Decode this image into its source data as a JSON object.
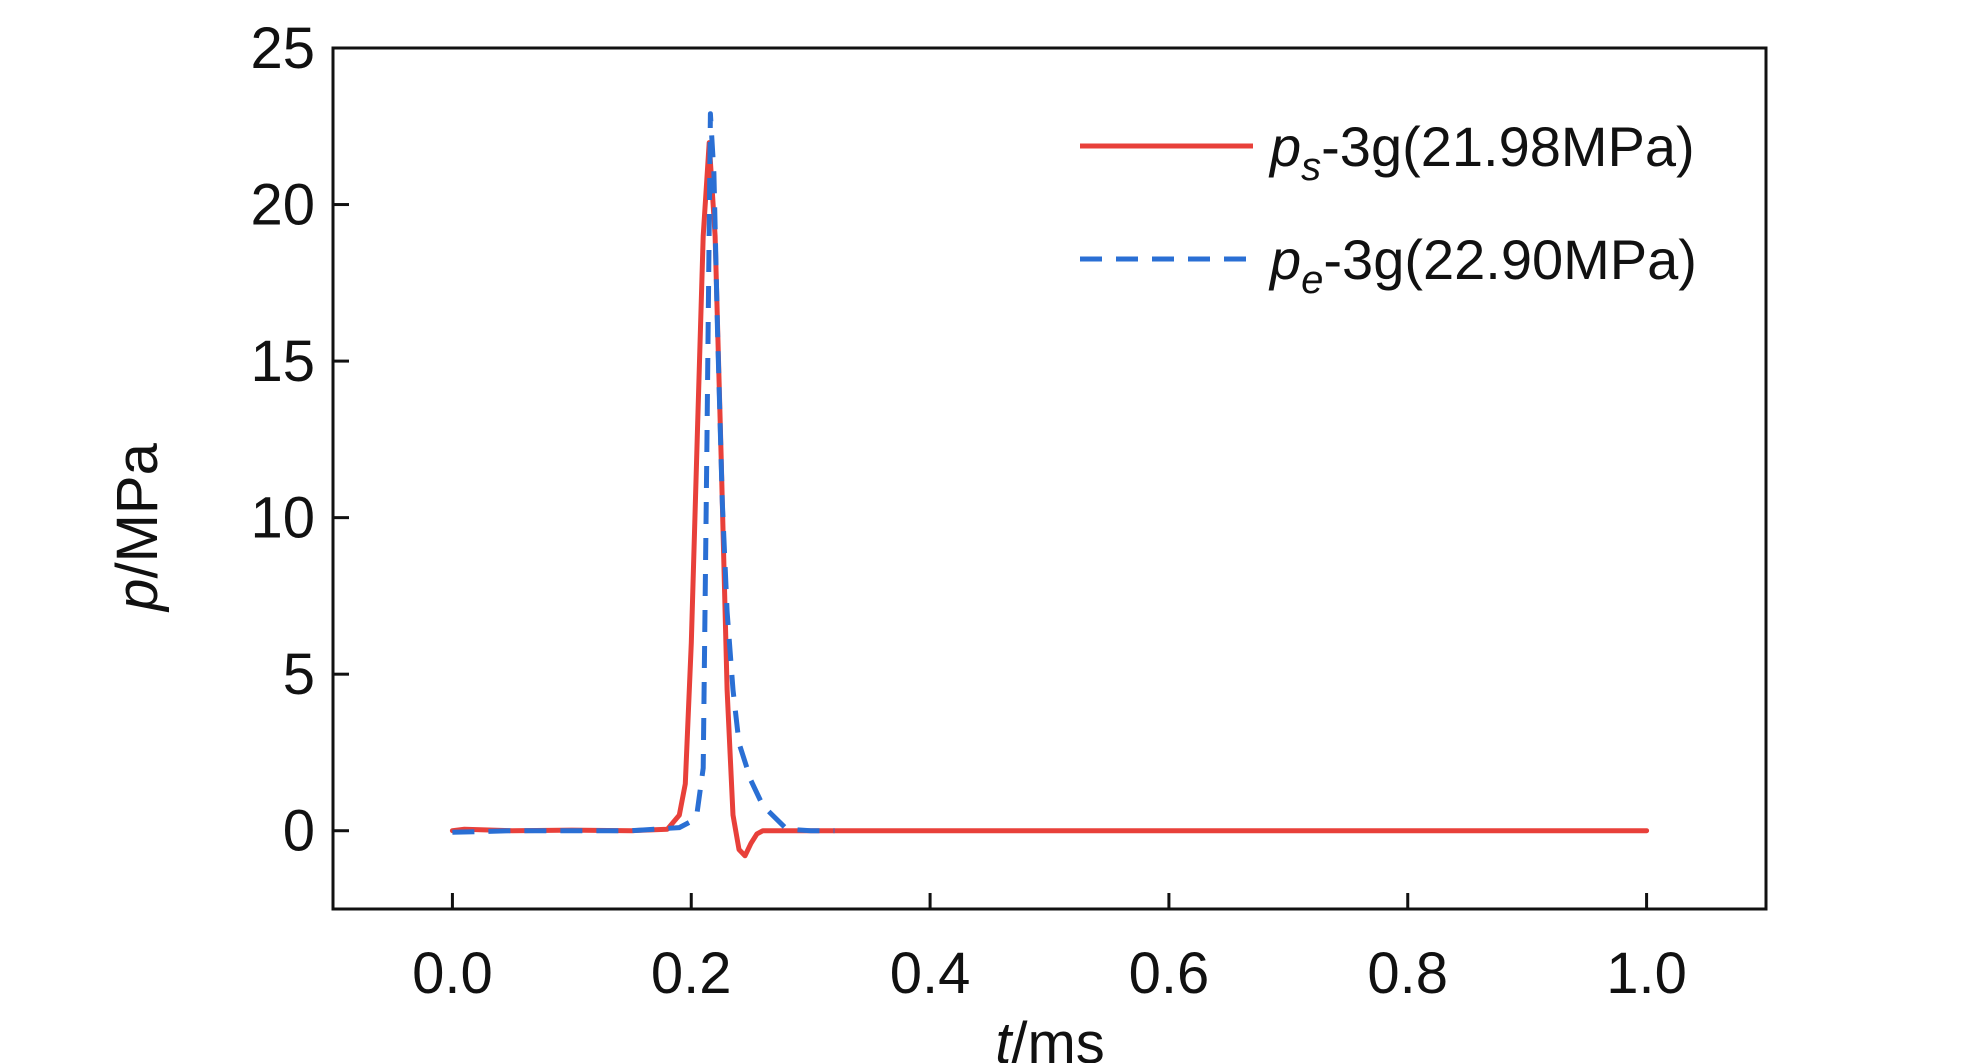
{
  "chart_data": {
    "type": "line",
    "xlabel": {
      "var": "t",
      "unit": "/ms"
    },
    "ylabel": {
      "var": "p",
      "unit": "/MPa"
    },
    "xlim": [
      -0.1,
      1.1
    ],
    "ylim": [
      -2.5,
      25
    ],
    "x_ticks": [
      0.0,
      0.2,
      0.4,
      0.6,
      0.8,
      1.0
    ],
    "x_tick_labels": [
      "0.0",
      "0.2",
      "0.4",
      "0.6",
      "0.8",
      "1.0"
    ],
    "y_ticks": [
      0,
      5,
      10,
      15,
      20,
      25
    ],
    "y_tick_labels": [
      "0",
      "5",
      "10",
      "15",
      "20",
      "25"
    ],
    "grid": false,
    "legend_position": "top-right",
    "series": [
      {
        "name": "ps-3g(21.98MPa)",
        "legend": {
          "sym": "p",
          "sub": "s",
          "rest": "-3g(21.98MPa)"
        },
        "color": "#e8403a",
        "style": "solid",
        "x": [
          0.0,
          0.01,
          0.05,
          0.1,
          0.15,
          0.18,
          0.19,
          0.195,
          0.2,
          0.205,
          0.21,
          0.215,
          0.22,
          0.225,
          0.23,
          0.235,
          0.24,
          0.245,
          0.25,
          0.255,
          0.26,
          0.3,
          0.5,
          1.0
        ],
        "y": [
          0.0,
          0.05,
          0.0,
          0.02,
          0.0,
          0.05,
          0.5,
          1.5,
          6.0,
          12.5,
          19.0,
          21.98,
          19.0,
          12.0,
          4.5,
          0.5,
          -0.6,
          -0.8,
          -0.4,
          -0.1,
          0.0,
          0.0,
          0.0,
          0.0
        ]
      },
      {
        "name": "pe-3g(22.90MPa)",
        "legend": {
          "sym": "p",
          "sub": "e",
          "rest": "-3g(22.90MPa)"
        },
        "color": "#2a6fd4",
        "style": "dashed",
        "x": [
          0.0,
          0.05,
          0.1,
          0.15,
          0.19,
          0.2,
          0.205,
          0.21,
          0.213,
          0.216,
          0.219,
          0.222,
          0.226,
          0.23,
          0.235,
          0.24,
          0.25,
          0.26,
          0.28,
          0.3,
          0.32
        ],
        "y": [
          -0.05,
          0.0,
          0.0,
          0.0,
          0.1,
          0.3,
          0.6,
          2.0,
          12.0,
          22.9,
          21.0,
          16.0,
          10.5,
          7.0,
          4.5,
          2.8,
          1.6,
          0.8,
          0.05,
          0.0,
          0.0
        ]
      }
    ]
  }
}
